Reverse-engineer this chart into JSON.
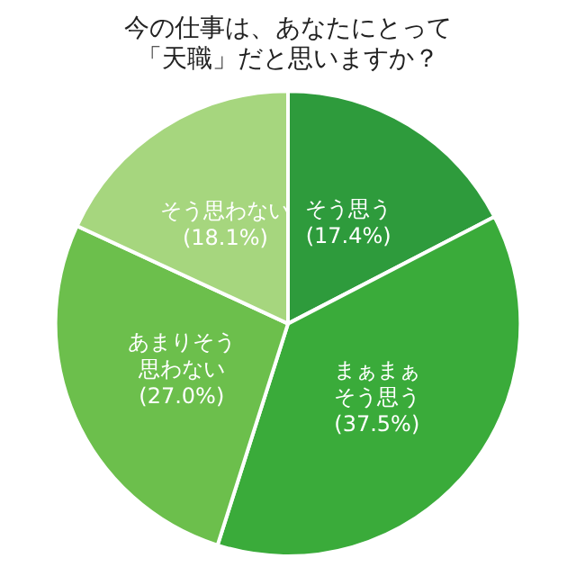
{
  "chart_data": {
    "type": "pie",
    "title": "今の仕事は、あなたにとって「天職」だと思いますか？",
    "categories": [
      "そう思う",
      "まぁまぁそう思う",
      "あまりそう思わない",
      "そう思わない"
    ],
    "values": [
      17.4,
      37.5,
      27.0,
      18.1
    ],
    "colors": [
      "#2e9b3c",
      "#3aab3a",
      "#6cbf4c",
      "#a6d67e"
    ],
    "value_labels": [
      "(17.4%)",
      "(37.5%)",
      "(27.0%)",
      "(18.1%)"
    ],
    "legend": false
  }
}
